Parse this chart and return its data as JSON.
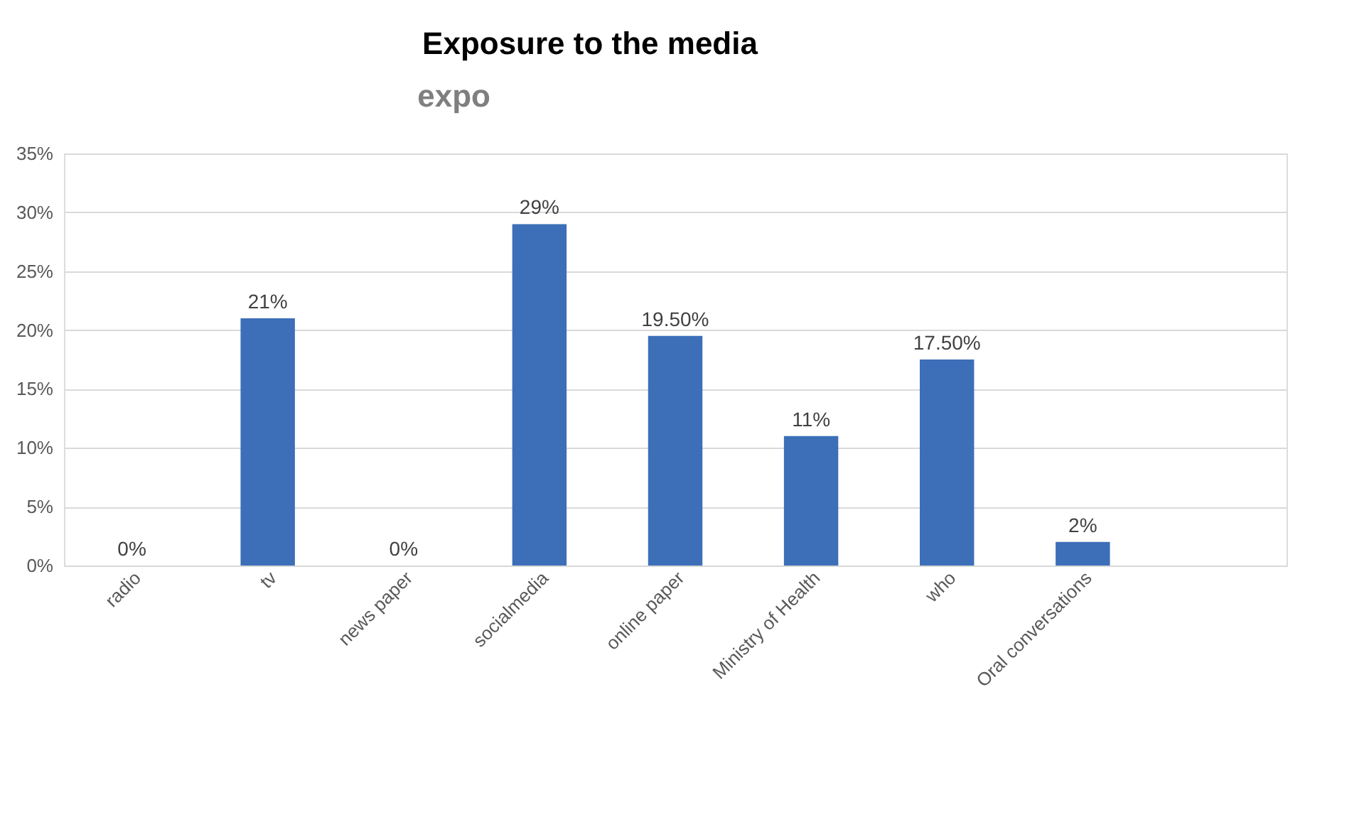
{
  "chart_data": {
    "type": "bar",
    "title": "Exposure to the media",
    "annotations": [
      "expo"
    ],
    "categories": [
      "radio",
      "tv",
      "news paper",
      "socialmedia",
      "online paper",
      "Ministry of Health",
      "who",
      "Oral conversations",
      null
    ],
    "values": [
      0,
      21,
      0,
      29,
      19.5,
      11,
      17.5,
      2,
      null
    ],
    "value_labels": [
      "0%",
      "21%",
      "0%",
      "29%",
      "19.50%",
      "11%",
      "17.50%",
      "2%",
      null
    ],
    "color": "#3d6fb8",
    "ylim": [
      0,
      35
    ],
    "yticks": [
      {
        "value": 0,
        "label": "0%"
      },
      {
        "value": 5,
        "label": "5%"
      },
      {
        "value": 10,
        "label": "10%"
      },
      {
        "value": 15,
        "label": "15%"
      },
      {
        "value": 20,
        "label": "20%"
      },
      {
        "value": 25,
        "label": "25%"
      },
      {
        "value": 30,
        "label": "30%"
      },
      {
        "value": 35,
        "label": "35%"
      }
    ],
    "grid": "y"
  }
}
